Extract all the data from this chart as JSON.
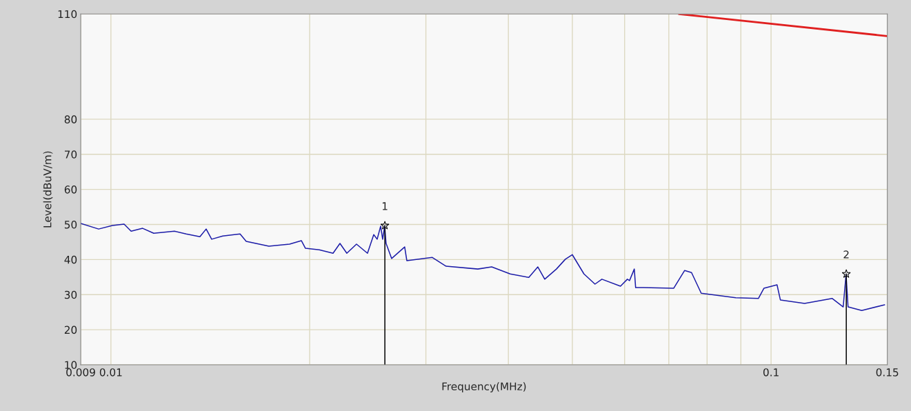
{
  "chart_data": {
    "type": "line",
    "xlabel": "Frequency(MHz)",
    "ylabel": "Level(dBuV/m)",
    "log": "x",
    "xlim": [
      0.009,
      0.15
    ],
    "xticks": [
      0.009,
      0.01,
      {
        "value": 0.02,
        "label": null
      },
      {
        "value": 0.03,
        "label": null
      },
      {
        "value": 0.04,
        "label": null
      },
      {
        "value": 0.05,
        "label": null
      },
      {
        "value": 0.06,
        "label": null
      },
      {
        "value": 0.07,
        "label": null
      },
      {
        "value": 0.08,
        "label": null
      },
      {
        "value": 0.09,
        "label": null
      },
      0.1,
      0.15
    ],
    "ylim": [
      10,
      110
    ],
    "yticks": [
      10,
      20,
      30,
      40,
      50,
      60,
      70,
      80,
      110
    ],
    "grid": true,
    "marker": "none",
    "line_style": "solid",
    "series": [
      {
        "color": "#1c1ca8",
        "x": [
          0.009,
          0.00958,
          0.01005,
          0.01047,
          0.01073,
          0.01117,
          0.01161,
          0.01248,
          0.013,
          0.01364,
          0.01394,
          0.01421,
          0.01477,
          0.01569,
          0.01603,
          0.01735,
          0.01865,
          0.01943,
          0.01971,
          0.02068,
          0.0217,
          0.02223,
          0.02277,
          0.02355,
          0.02447,
          0.02501,
          0.02531,
          0.02562,
          0.0258,
          0.02598,
          0.02611,
          0.02662,
          0.02786,
          0.02807,
          0.03068,
          0.03219,
          0.03596,
          0.03774,
          0.04026,
          0.04296,
          0.04433,
          0.04541,
          0.0473,
          0.0488,
          0.04999,
          0.05207,
          0.05411,
          0.05543,
          0.05914,
          0.06058,
          0.06104,
          0.06206,
          0.06235,
          0.06402,
          0.07119,
          0.07398,
          0.07577,
          0.07838,
          0.0884,
          0.09567,
          0.09753,
          0.1021,
          0.1033,
          0.1124,
          0.1238,
          0.1286,
          0.1299,
          0.1308,
          0.1372,
          0.1486
        ],
        "values": [
          50.3,
          48.7,
          49.7,
          50.1,
          48.1,
          48.9,
          47.5,
          48.1,
          47.3,
          46.5,
          48.7,
          45.8,
          46.7,
          47.3,
          45.2,
          43.8,
          44.4,
          45.4,
          43.2,
          42.8,
          41.8,
          44.6,
          41.8,
          44.4,
          41.8,
          47.1,
          45.8,
          49.5,
          45.8,
          49.5,
          44.6,
          40.3,
          43.6,
          39.7,
          40.6,
          38.1,
          37.3,
          37.9,
          35.9,
          34.9,
          37.9,
          34.4,
          37.3,
          40.1,
          41.4,
          35.9,
          33.0,
          34.4,
          32.4,
          34.4,
          34.0,
          37.3,
          32.0,
          32.0,
          31.8,
          36.9,
          36.3,
          30.4,
          29.1,
          28.9,
          31.8,
          32.8,
          28.5,
          27.5,
          28.9,
          26.5,
          35.7,
          26.5,
          25.5,
          27.1
        ]
      },
      {
        "color": "#000000",
        "marker": "star",
        "x": [
          0.026,
          0.026
        ],
        "values": [
          10,
          49.7
        ]
      },
      {
        "color": "#000000",
        "marker": "star",
        "x": [
          0.13,
          0.13
        ],
        "values": [
          10,
          35.9
        ]
      },
      {
        "color": "#e02020",
        "x": [
          0.0725,
          0.15
        ],
        "values": [
          110,
          103.7
        ]
      }
    ],
    "annotations": [
      {
        "text": "1",
        "x": 0.026,
        "y": 49.7
      },
      {
        "text": "2",
        "x": 0.13,
        "y": 35.9
      }
    ]
  }
}
